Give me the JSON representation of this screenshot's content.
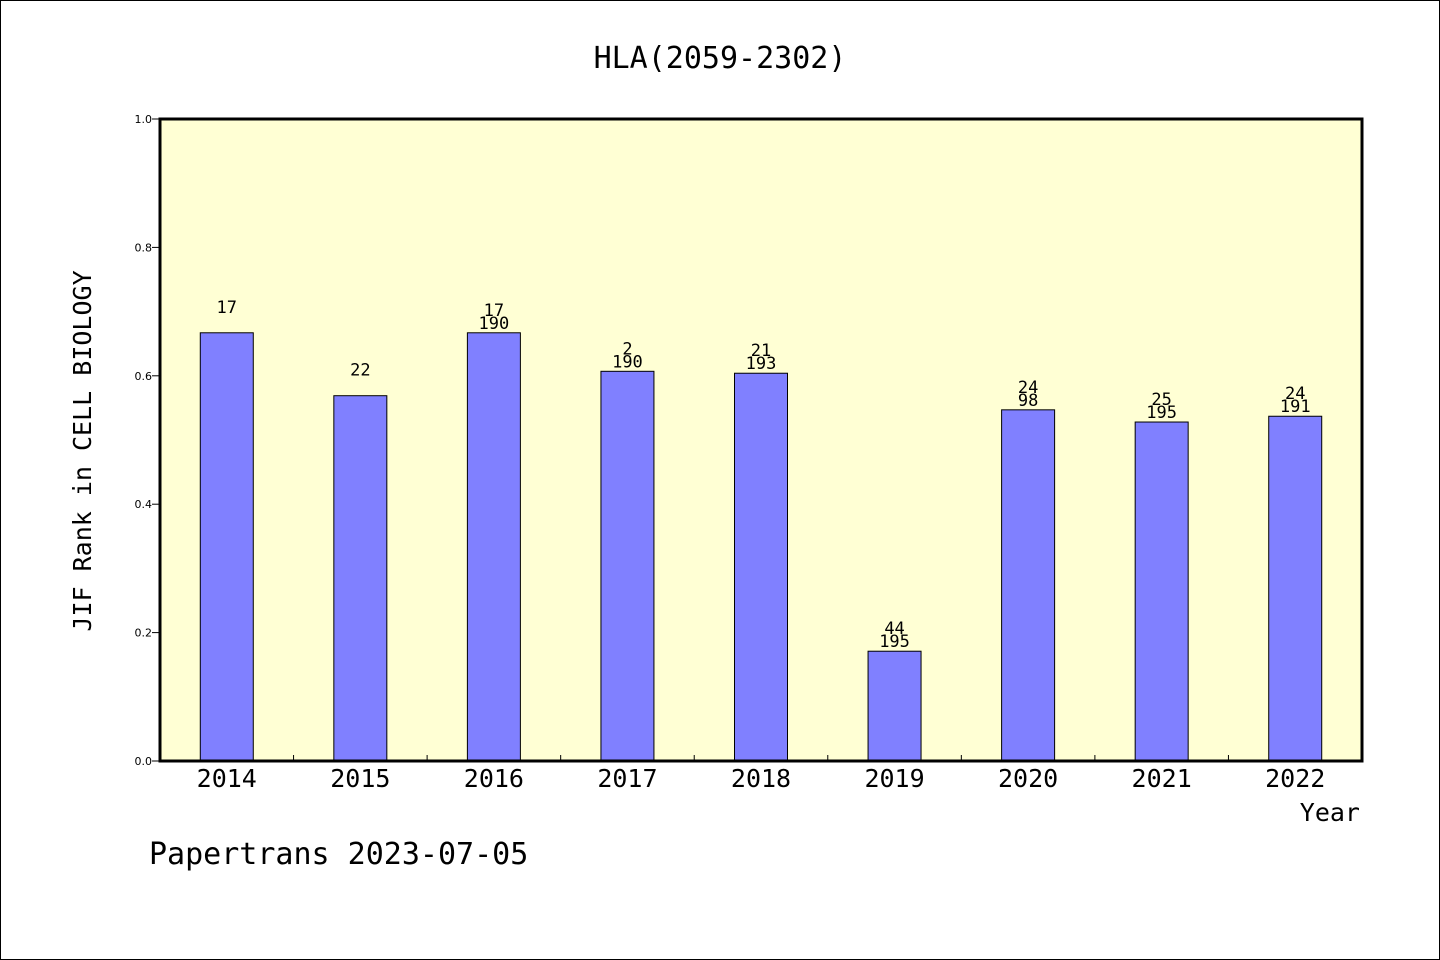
{
  "chart_data": {
    "type": "bar",
    "title": "HLA(2059-2302)",
    "xlabel": "Year",
    "ylabel": "JIF Rank in CELL BIOLOGY",
    "footer": "Papertrans 2023-07-05",
    "ylim": [
      0,
      1.0
    ],
    "yticks": [
      "0.0",
      "0.2",
      "0.4",
      "0.6",
      "0.8",
      "1.0"
    ],
    "categories": [
      "2014",
      "2015",
      "2016",
      "2017",
      "2018",
      "2019",
      "2020",
      "2021",
      "2022"
    ],
    "values": [
      0.667,
      0.569,
      0.667,
      0.607,
      0.604,
      0.171,
      0.547,
      0.528,
      0.537
    ],
    "label_top": [
      "17",
      "22",
      "17",
      "2",
      "21",
      "44",
      "24",
      "25",
      "24"
    ],
    "label_bottom": [
      "",
      "",
      "190",
      "190",
      "193",
      "195",
      "98",
      "195",
      "191"
    ],
    "grid": false,
    "colors": {
      "plot_background": "#ffffd4",
      "bar_fill": "#8080ff",
      "bar_stroke": "#000000"
    }
  }
}
